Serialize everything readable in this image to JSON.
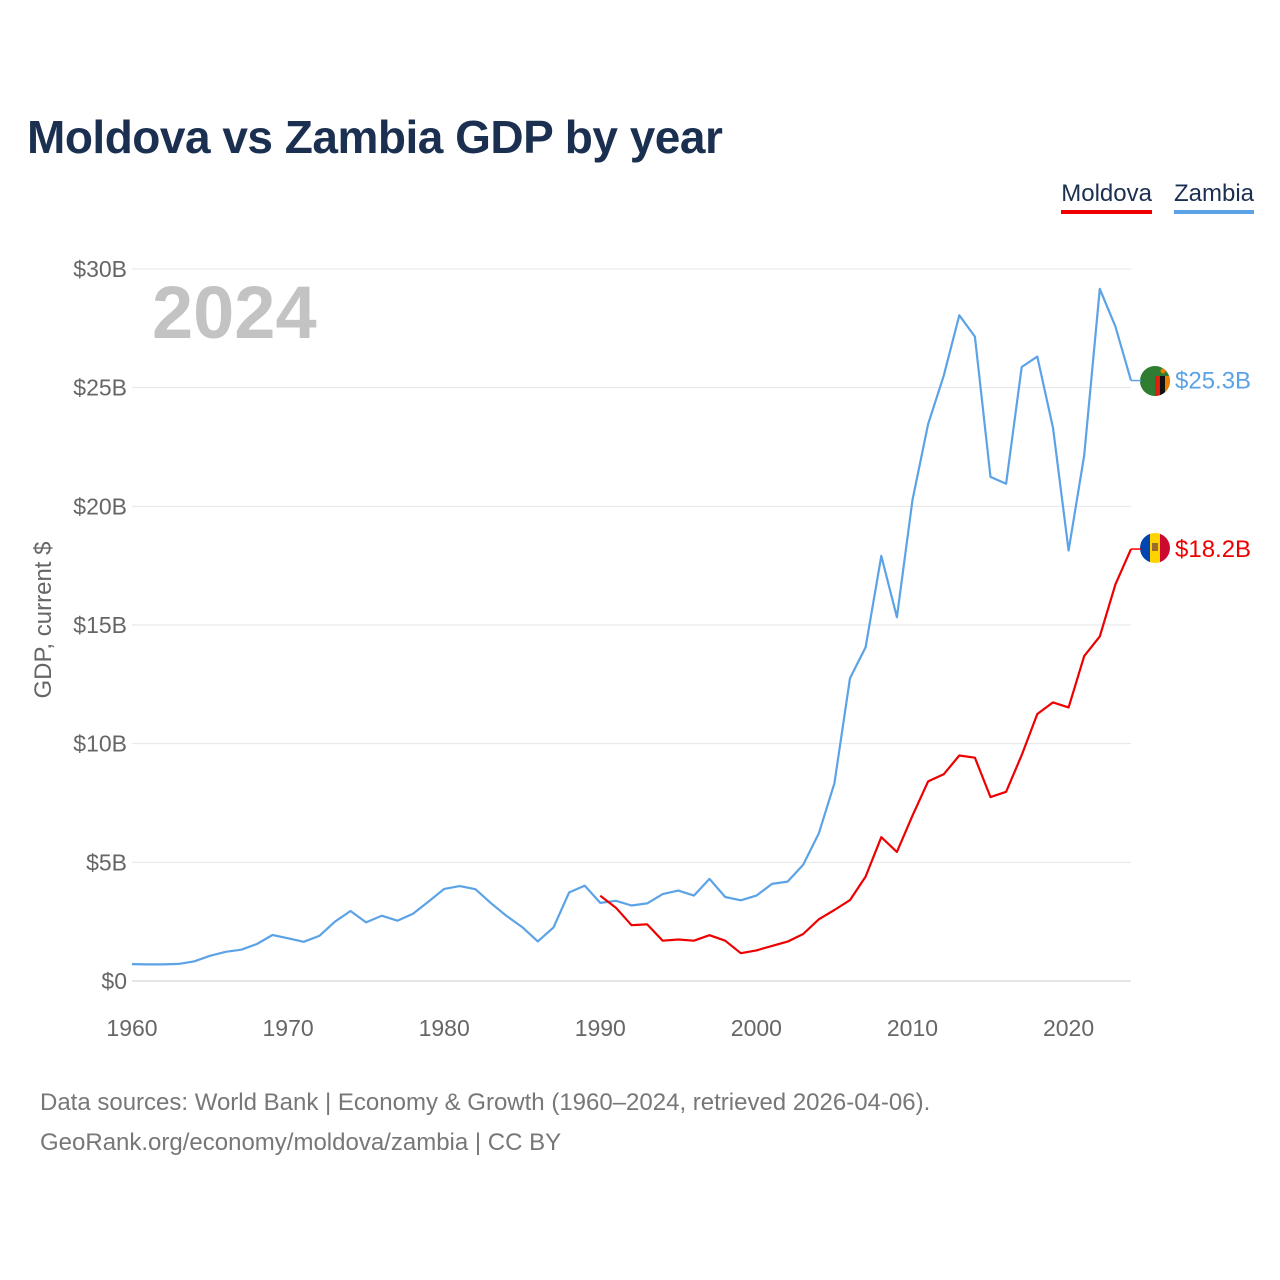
{
  "title": "Moldova vs Zambia GDP by year",
  "legend": [
    {
      "name": "Moldova",
      "color": "#ee0000"
    },
    {
      "name": "Zambia",
      "color": "#5ba3e6"
    }
  ],
  "chart_data": {
    "type": "line",
    "title": "Moldova vs Zambia GDP by year",
    "xlabel": "",
    "ylabel": "GDP, current $",
    "xlim": [
      1960,
      2024
    ],
    "ylim": [
      0,
      30
    ],
    "x_ticks": [
      1960,
      1970,
      1980,
      1990,
      2000,
      2010,
      2020
    ],
    "x_tick_labels": [
      "1960",
      "1970",
      "1980",
      "1990",
      "2000",
      "2010",
      "2020"
    ],
    "y_ticks": [
      0,
      5,
      10,
      15,
      20,
      25,
      30
    ],
    "y_tick_labels": [
      "$0",
      "$5B",
      "$10B",
      "$15B",
      "$20B",
      "$25B",
      "$30B"
    ],
    "year_label": "2024",
    "grid": true,
    "units": "billion US$ (current)",
    "series": [
      {
        "name": "Zambia",
        "color": "#5ba3e6",
        "end_label": "$25.3B",
        "flag": "zambia-flag",
        "x": [
          1960,
          1961,
          1962,
          1963,
          1964,
          1965,
          1966,
          1967,
          1968,
          1969,
          1970,
          1971,
          1972,
          1973,
          1974,
          1975,
          1976,
          1977,
          1978,
          1979,
          1980,
          1981,
          1982,
          1983,
          1984,
          1985,
          1986,
          1987,
          1988,
          1989,
          1990,
          1991,
          1992,
          1993,
          1994,
          1995,
          1996,
          1997,
          1998,
          1999,
          2000,
          2001,
          2002,
          2003,
          2004,
          2005,
          2006,
          2007,
          2008,
          2009,
          2010,
          2011,
          2012,
          2013,
          2014,
          2015,
          2016,
          2017,
          2018,
          2019,
          2020,
          2021,
          2022,
          2023,
          2024
        ],
        "values": [
          0.71,
          0.7,
          0.7,
          0.72,
          0.83,
          1.06,
          1.23,
          1.32,
          1.56,
          1.94,
          1.8,
          1.65,
          1.9,
          2.5,
          2.95,
          2.47,
          2.75,
          2.54,
          2.83,
          3.35,
          3.88,
          4.0,
          3.87,
          3.28,
          2.74,
          2.27,
          1.67,
          2.26,
          3.73,
          4.02,
          3.29,
          3.38,
          3.18,
          3.27,
          3.66,
          3.81,
          3.6,
          4.3,
          3.54,
          3.4,
          3.6,
          4.09,
          4.19,
          4.9,
          6.22,
          8.33,
          12.76,
          14.06,
          17.91,
          15.33,
          20.27,
          23.46,
          25.5,
          28.05,
          27.15,
          21.24,
          20.95,
          25.87,
          26.31,
          23.31,
          18.14,
          22.15,
          29.16,
          27.58,
          25.3
        ]
      },
      {
        "name": "Moldova",
        "color": "#ee0000",
        "end_label": "$18.2B",
        "flag": "moldova-flag",
        "x": [
          1990,
          1991,
          1992,
          1993,
          1994,
          1995,
          1996,
          1997,
          1998,
          1999,
          2000,
          2001,
          2002,
          2003,
          2004,
          2005,
          2006,
          2007,
          2008,
          2009,
          2010,
          2011,
          2012,
          2013,
          2014,
          2015,
          2016,
          2017,
          2018,
          2019,
          2020,
          2021,
          2022,
          2023,
          2024
        ],
        "values": [
          3.59,
          3.09,
          2.35,
          2.39,
          1.7,
          1.75,
          1.7,
          1.93,
          1.7,
          1.17,
          1.29,
          1.48,
          1.66,
          1.98,
          2.6,
          2.99,
          3.41,
          4.4,
          6.06,
          5.44,
          6.97,
          8.41,
          8.71,
          9.5,
          9.41,
          7.75,
          7.97,
          9.52,
          11.25,
          11.74,
          11.53,
          13.69,
          14.52,
          16.71,
          18.2
        ]
      }
    ]
  },
  "footer": {
    "line1": "Data sources: World Bank | Economy & Growth (1960–2024, retrieved 2026-04-06).",
    "line2": "GeoRank.org/economy/moldova/zambia | CC BY"
  }
}
